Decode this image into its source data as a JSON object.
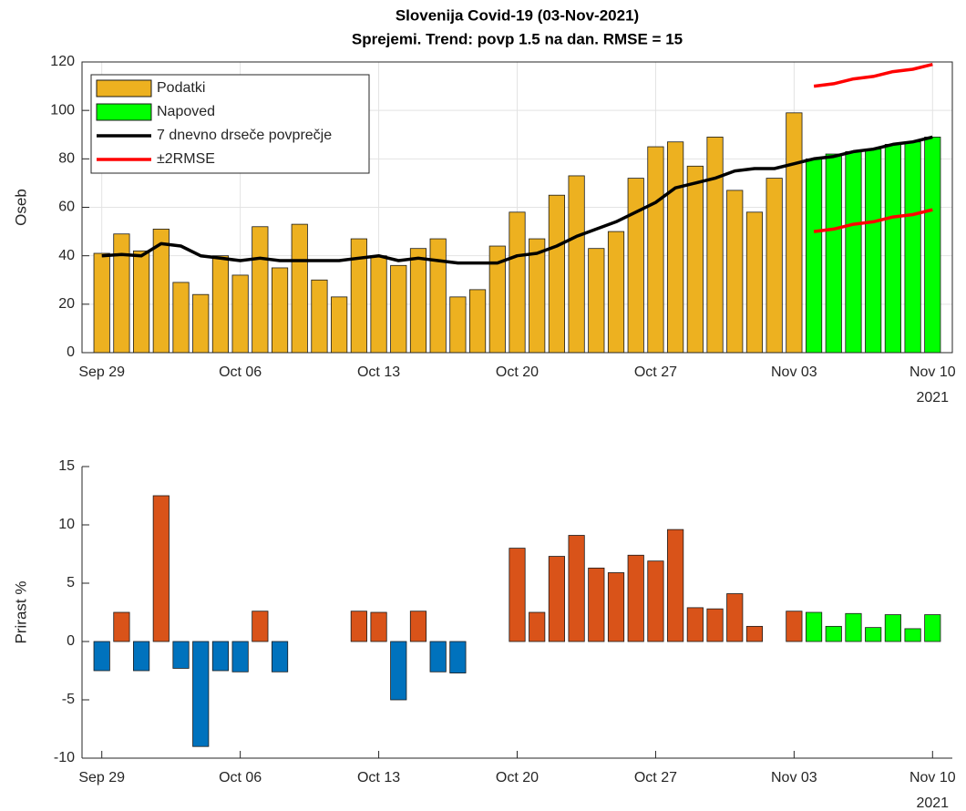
{
  "chart_data": [
    {
      "type": "bar",
      "title": [
        "Slovenija Covid-19 (03-Nov-2021)",
        "Sprejemi. Trend: povp 1.5 na dan. RMSE = 15"
      ],
      "ylabel": "Oseb",
      "x": [
        "2021-09-29",
        "2021-09-30",
        "2021-10-01",
        "2021-10-02",
        "2021-10-03",
        "2021-10-04",
        "2021-10-05",
        "2021-10-06",
        "2021-10-07",
        "2021-10-08",
        "2021-10-09",
        "2021-10-10",
        "2021-10-11",
        "2021-10-12",
        "2021-10-13",
        "2021-10-14",
        "2021-10-15",
        "2021-10-16",
        "2021-10-17",
        "2021-10-18",
        "2021-10-19",
        "2021-10-20",
        "2021-10-21",
        "2021-10-22",
        "2021-10-23",
        "2021-10-24",
        "2021-10-25",
        "2021-10-26",
        "2021-10-27",
        "2021-10-28",
        "2021-10-29",
        "2021-10-30",
        "2021-10-31",
        "2021-11-01",
        "2021-11-02",
        "2021-11-03",
        "2021-11-04",
        "2021-11-05",
        "2021-11-06",
        "2021-11-07",
        "2021-11-08",
        "2021-11-09",
        "2021-11-10"
      ],
      "xlim": [
        "2021-09-28",
        "2021-11-11"
      ],
      "xticks": [
        {
          "value": "2021-09-29",
          "label": "Sep 29"
        },
        {
          "value": "2021-10-06",
          "label": "Oct 06"
        },
        {
          "value": "2021-10-13",
          "label": "Oct 13"
        },
        {
          "value": "2021-10-20",
          "label": "Oct 20"
        },
        {
          "value": "2021-10-27",
          "label": "Oct 27"
        },
        {
          "value": "2021-11-03",
          "label": "Nov 03"
        },
        {
          "value": "2021-11-10",
          "label": "Nov 10"
        }
      ],
      "xyear": "2021",
      "ylim": [
        0,
        120
      ],
      "yticks": [
        0,
        20,
        40,
        60,
        80,
        100,
        120
      ],
      "grid": true,
      "box": true,
      "legend": "northwest",
      "series": [
        {
          "name": "Podatki",
          "type": "bar",
          "color": "#EDB120",
          "values": [
            41,
            49,
            42,
            51,
            29,
            24,
            40,
            32,
            52,
            35,
            53,
            30,
            23,
            47,
            40,
            36,
            43,
            47,
            23,
            26,
            44,
            58,
            47,
            65,
            73,
            43,
            50,
            72,
            85,
            87,
            77,
            89,
            67,
            58,
            72,
            99,
            null,
            null,
            null,
            null,
            null,
            null,
            null
          ]
        },
        {
          "name": "Napoved",
          "type": "bar",
          "color": "#00FF00",
          "values": [
            null,
            null,
            null,
            null,
            null,
            null,
            null,
            null,
            null,
            null,
            null,
            null,
            null,
            null,
            null,
            null,
            null,
            null,
            null,
            null,
            null,
            null,
            null,
            null,
            null,
            null,
            null,
            null,
            null,
            null,
            null,
            null,
            null,
            null,
            null,
            null,
            80,
            82,
            83,
            84,
            86,
            87,
            89
          ]
        },
        {
          "name": "7 dnevno drseče povprečje",
          "type": "line",
          "color": "#000000",
          "values": [
            40,
            40.5,
            40,
            45,
            44,
            40,
            39,
            38,
            39,
            38,
            38,
            38,
            38,
            39,
            40,
            38,
            39,
            38,
            37,
            37,
            37,
            40,
            41,
            44,
            48,
            51,
            54,
            58,
            62,
            68,
            70,
            72,
            75,
            76,
            76,
            78,
            80,
            81,
            83,
            84,
            86,
            87,
            89
          ]
        },
        {
          "name": "±2RMSE",
          "type": "line",
          "color": "#FF0000",
          "values": [
            null,
            null,
            null,
            null,
            null,
            null,
            null,
            null,
            null,
            null,
            null,
            null,
            null,
            null,
            null,
            null,
            null,
            null,
            null,
            null,
            null,
            null,
            null,
            null,
            null,
            null,
            null,
            null,
            null,
            null,
            null,
            null,
            null,
            null,
            null,
            null,
            110,
            111,
            113,
            114,
            116,
            117,
            119
          ]
        },
        {
          "type": "line",
          "color": "#FF0000",
          "values": [
            null,
            null,
            null,
            null,
            null,
            null,
            null,
            null,
            null,
            null,
            null,
            null,
            null,
            null,
            null,
            null,
            null,
            null,
            null,
            null,
            null,
            null,
            null,
            null,
            null,
            null,
            null,
            null,
            null,
            null,
            null,
            null,
            null,
            null,
            null,
            null,
            50,
            51,
            53,
            54,
            56,
            57,
            59
          ]
        }
      ]
    },
    {
      "type": "bar",
      "ylabel": "Prirast %",
      "x": [
        "2021-09-29",
        "2021-09-30",
        "2021-10-01",
        "2021-10-02",
        "2021-10-03",
        "2021-10-04",
        "2021-10-05",
        "2021-10-06",
        "2021-10-07",
        "2021-10-08",
        "2021-10-09",
        "2021-10-10",
        "2021-10-11",
        "2021-10-12",
        "2021-10-13",
        "2021-10-14",
        "2021-10-15",
        "2021-10-16",
        "2021-10-17",
        "2021-10-18",
        "2021-10-19",
        "2021-10-20",
        "2021-10-21",
        "2021-10-22",
        "2021-10-23",
        "2021-10-24",
        "2021-10-25",
        "2021-10-26",
        "2021-10-27",
        "2021-10-28",
        "2021-10-29",
        "2021-10-30",
        "2021-10-31",
        "2021-11-01",
        "2021-11-02",
        "2021-11-03",
        "2021-11-04",
        "2021-11-05",
        "2021-11-06",
        "2021-11-07",
        "2021-11-08",
        "2021-11-09",
        "2021-11-10"
      ],
      "xlim": [
        "2021-09-28",
        "2021-11-11"
      ],
      "xticks": [
        {
          "value": "2021-09-29",
          "label": "Sep 29"
        },
        {
          "value": "2021-10-06",
          "label": "Oct 06"
        },
        {
          "value": "2021-10-13",
          "label": "Oct 13"
        },
        {
          "value": "2021-10-20",
          "label": "Oct 20"
        },
        {
          "value": "2021-10-27",
          "label": "Oct 27"
        },
        {
          "value": "2021-11-03",
          "label": "Nov 03"
        },
        {
          "value": "2021-11-10",
          "label": "Nov 10"
        }
      ],
      "xyear": "2021",
      "ylim": [
        -10,
        15
      ],
      "yticks": [
        -10,
        -5,
        0,
        5,
        10,
        15
      ],
      "grid": false,
      "box": false,
      "series": [
        {
          "type": "bar",
          "color": "#D95319",
          "negative_color": "#0072BD",
          "values": [
            -2.5,
            2.5,
            -2.5,
            12.5,
            -2.3,
            -9,
            -2.5,
            -2.6,
            2.6,
            -2.6,
            0,
            0,
            0,
            2.6,
            2.5,
            -5,
            2.6,
            -2.6,
            -2.7,
            0,
            0,
            8,
            2.5,
            7.3,
            9.1,
            6.3,
            5.9,
            7.4,
            6.9,
            9.6,
            2.9,
            2.8,
            4.1,
            1.3,
            0,
            2.6,
            null,
            null,
            null,
            null,
            null,
            null,
            null
          ]
        },
        {
          "type": "bar",
          "color": "#00FF00",
          "values": [
            null,
            null,
            null,
            null,
            null,
            null,
            null,
            null,
            null,
            null,
            null,
            null,
            null,
            null,
            null,
            null,
            null,
            null,
            null,
            null,
            null,
            null,
            null,
            null,
            null,
            null,
            null,
            null,
            null,
            null,
            null,
            null,
            null,
            null,
            null,
            null,
            2.5,
            1.3,
            2.4,
            1.2,
            2.3,
            1.1,
            2.3
          ]
        }
      ]
    }
  ]
}
